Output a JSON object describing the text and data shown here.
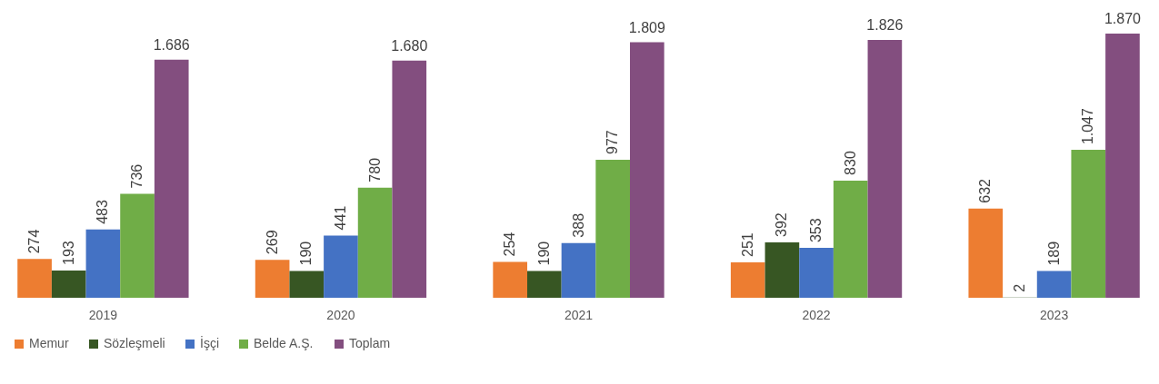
{
  "chart_data": {
    "type": "bar",
    "categories": [
      "2019",
      "2020",
      "2021",
      "2022",
      "2023"
    ],
    "series": [
      {
        "name": "Memur",
        "color": "#ed7d31",
        "values": [
          274,
          269,
          254,
          251,
          632
        ],
        "value_labels": [
          "274",
          "269",
          "254",
          "251",
          "632"
        ]
      },
      {
        "name": "Sözleşmeli",
        "color": "#375623",
        "values": [
          193,
          190,
          190,
          392,
          2
        ],
        "value_labels": [
          "193",
          "190",
          "190",
          "392",
          "2"
        ]
      },
      {
        "name": "İşçi",
        "color": "#4472c4",
        "values": [
          483,
          441,
          388,
          353,
          189
        ],
        "value_labels": [
          "483",
          "441",
          "388",
          "353",
          "189"
        ]
      },
      {
        "name": "Belde A.Ş.",
        "color": "#70ad47",
        "values": [
          736,
          780,
          977,
          830,
          1047
        ],
        "value_labels": [
          "736",
          "780",
          "977",
          "830",
          "1.047"
        ]
      },
      {
        "name": "Toplam",
        "color": "#834e7f",
        "values": [
          1686,
          1680,
          1809,
          1826,
          1870
        ],
        "value_labels": [
          "1.686",
          "1.680",
          "1.809",
          "1.826",
          "1.870"
        ]
      }
    ],
    "legend": "bottom",
    "grid": false
  }
}
